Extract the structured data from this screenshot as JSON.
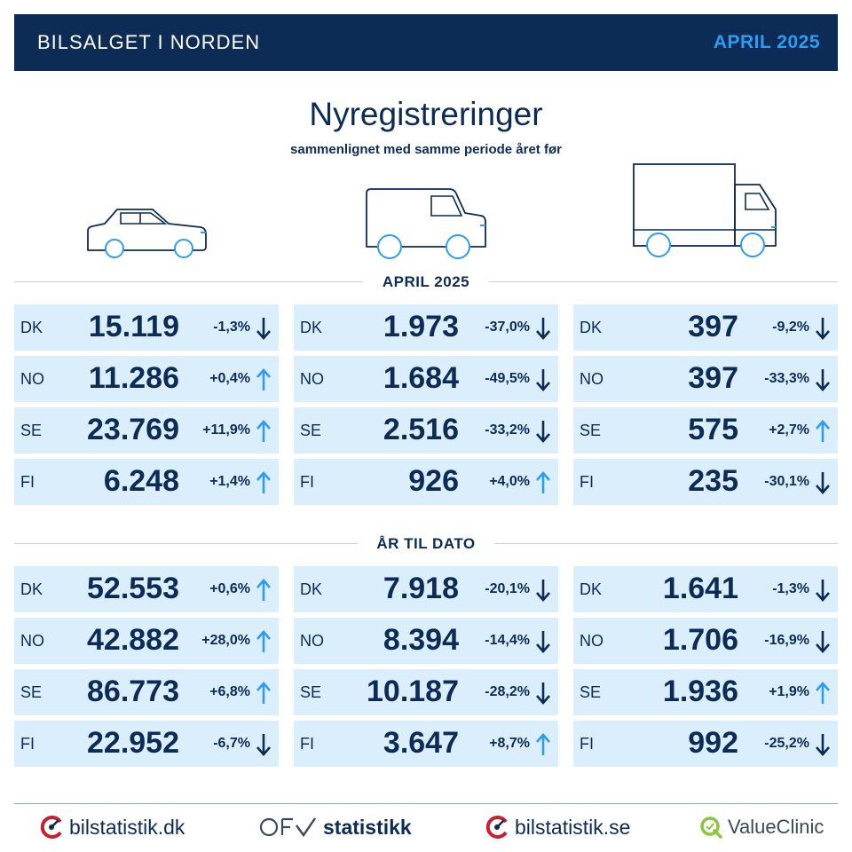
{
  "header": {
    "title": "BILSALGET I NORDEN",
    "period": "APRIL 2025"
  },
  "title": "Nyregistreringer",
  "subtitle": "sammenlignet med samme periode året før",
  "sections": [
    {
      "label": "APRIL 2025",
      "columns": [
        {
          "vehicle": "car-icon",
          "rows": [
            {
              "country": "DK",
              "value": "15.119",
              "change": "-1,3%",
              "dir": "down"
            },
            {
              "country": "NO",
              "value": "11.286",
              "change": "+0,4%",
              "dir": "up"
            },
            {
              "country": "SE",
              "value": "23.769",
              "change": "+11,9%",
              "dir": "up"
            },
            {
              "country": "FI",
              "value": "6.248",
              "change": "+1,4%",
              "dir": "up"
            }
          ]
        },
        {
          "vehicle": "van-icon",
          "rows": [
            {
              "country": "DK",
              "value": "1.973",
              "change": "-37,0%",
              "dir": "down"
            },
            {
              "country": "NO",
              "value": "1.684",
              "change": "-49,5%",
              "dir": "down"
            },
            {
              "country": "SE",
              "value": "2.516",
              "change": "-33,2%",
              "dir": "down"
            },
            {
              "country": "FI",
              "value": "926",
              "change": "+4,0%",
              "dir": "up"
            }
          ]
        },
        {
          "vehicle": "truck-icon",
          "rows": [
            {
              "country": "DK",
              "value": "397",
              "change": "-9,2%",
              "dir": "down"
            },
            {
              "country": "NO",
              "value": "397",
              "change": "-33,3%",
              "dir": "down"
            },
            {
              "country": "SE",
              "value": "575",
              "change": "+2,7%",
              "dir": "up"
            },
            {
              "country": "FI",
              "value": "235",
              "change": "-30,1%",
              "dir": "down"
            }
          ]
        }
      ]
    },
    {
      "label": "ÅR TIL DATO",
      "columns": [
        {
          "vehicle": "car-icon",
          "rows": [
            {
              "country": "DK",
              "value": "52.553",
              "change": "+0,6%",
              "dir": "up"
            },
            {
              "country": "NO",
              "value": "42.882",
              "change": "+28,0%",
              "dir": "up"
            },
            {
              "country": "SE",
              "value": "86.773",
              "change": "+6,8%",
              "dir": "up"
            },
            {
              "country": "FI",
              "value": "22.952",
              "change": "-6,7%",
              "dir": "down"
            }
          ]
        },
        {
          "vehicle": "van-icon",
          "rows": [
            {
              "country": "DK",
              "value": "7.918",
              "change": "-20,1%",
              "dir": "down"
            },
            {
              "country": "NO",
              "value": "8.394",
              "change": "-14,4%",
              "dir": "down"
            },
            {
              "country": "SE",
              "value": "10.187",
              "change": "-28,2%",
              "dir": "down"
            },
            {
              "country": "FI",
              "value": "3.647",
              "change": "+8,7%",
              "dir": "up"
            }
          ]
        },
        {
          "vehicle": "truck-icon",
          "rows": [
            {
              "country": "DK",
              "value": "1.641",
              "change": "-1,3%",
              "dir": "down"
            },
            {
              "country": "NO",
              "value": "1.706",
              "change": "-16,9%",
              "dir": "down"
            },
            {
              "country": "SE",
              "value": "1.936",
              "change": "+1,9%",
              "dir": "up"
            },
            {
              "country": "FI",
              "value": "992",
              "change": "-25,2%",
              "dir": "down"
            }
          ]
        }
      ]
    }
  ],
  "footer": {
    "logos": [
      "bilstatistik.dk",
      "statistikk",
      "bilstatistik.se",
      "ValueClinic"
    ]
  },
  "colors": {
    "navy": "#0c2b55",
    "accent": "#2f9cf0",
    "cell": "#dbeefc",
    "arrow_up": "#2f9cf0",
    "arrow_down": "#0c2b55"
  }
}
